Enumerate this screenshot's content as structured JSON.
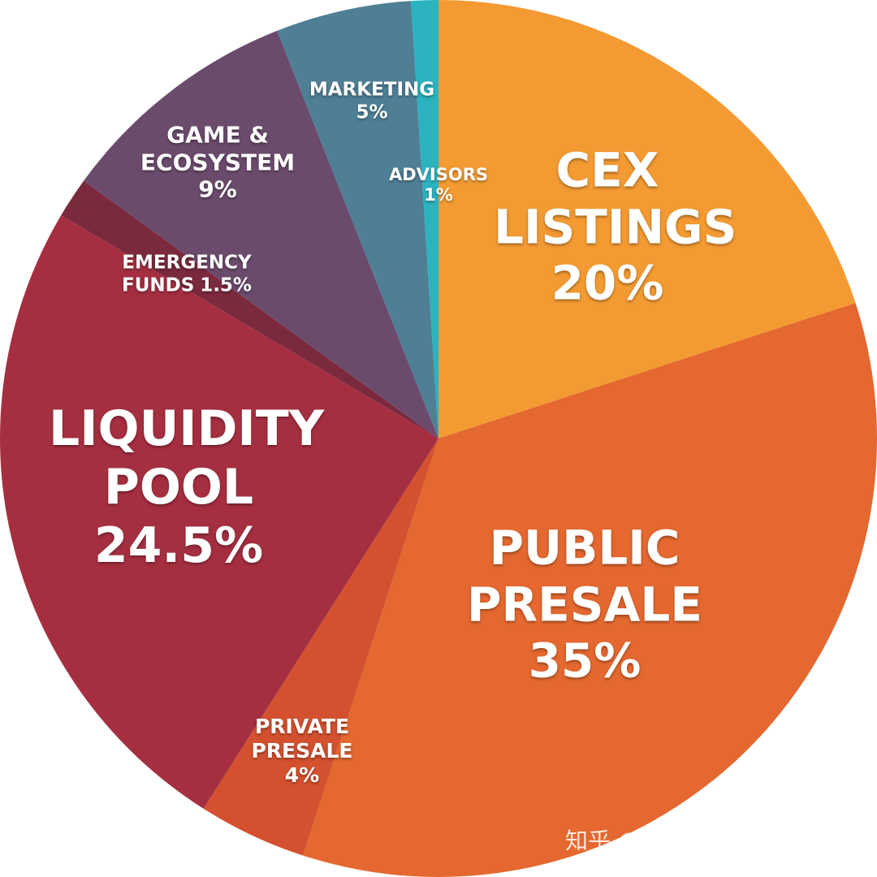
{
  "chart_data": {
    "type": "pie",
    "categories": [
      "CEX LISTINGS",
      "PUBLIC PRESALE",
      "PRIVATE PRESALE",
      "LIQUIDITY POOL",
      "EMERGENCY FUNDS",
      "GAME & ECOSYSTEM",
      "MARKETING",
      "ADVISORS"
    ],
    "values": [
      20,
      35,
      4,
      24.5,
      1.5,
      9,
      5,
      1
    ],
    "value_labels": [
      "20%",
      "35%",
      "4%",
      "24.5%",
      "1.5%",
      "9%",
      "5%",
      "1%"
    ],
    "colors": [
      "#f39a32",
      "#e4682f",
      "#d4512f",
      "#a52f41",
      "#7b2a3e",
      "#6b4b6c",
      "#4f7f95",
      "#2bb3c0"
    ],
    "watermark": "知乎 @科学家币圈研究院"
  }
}
